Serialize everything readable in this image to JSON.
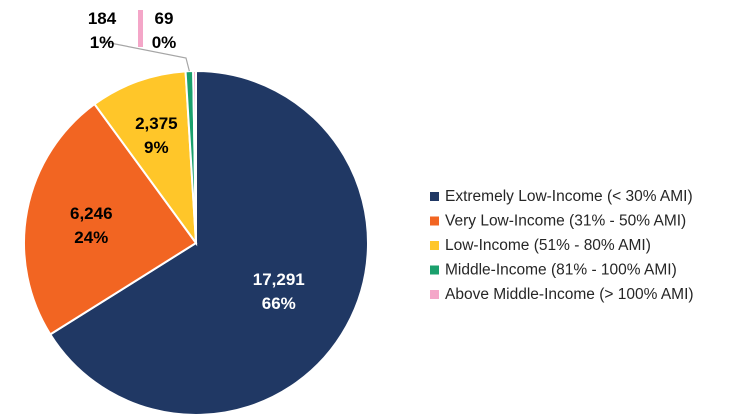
{
  "chart_data": {
    "type": "pie",
    "title": "",
    "legend_position": "right",
    "slices": [
      {
        "name": "Extremely Low-Income (< 30% AMI)",
        "value": 17291,
        "value_label": "17,291",
        "percent_label": "66%",
        "color": "#203864"
      },
      {
        "name": "Very Low-Income (31% - 50% AMI)",
        "value": 6246,
        "value_label": "6,246",
        "percent_label": "24%",
        "color": "#F26522"
      },
      {
        "name": "Low-Income (51% - 80% AMI)",
        "value": 2375,
        "value_label": "2,375",
        "percent_label": "9%",
        "color": "#FFC629"
      },
      {
        "name": "Middle-Income (81% - 100% AMI)",
        "value": 184,
        "value_label": "184",
        "percent_label": "1%",
        "color": "#1AA06D"
      },
      {
        "name": "Above Middle-Income (> 100% AMI)",
        "value": 69,
        "value_label": "69",
        "percent_label": "0%",
        "color": "#F4A6C8"
      }
    ]
  }
}
